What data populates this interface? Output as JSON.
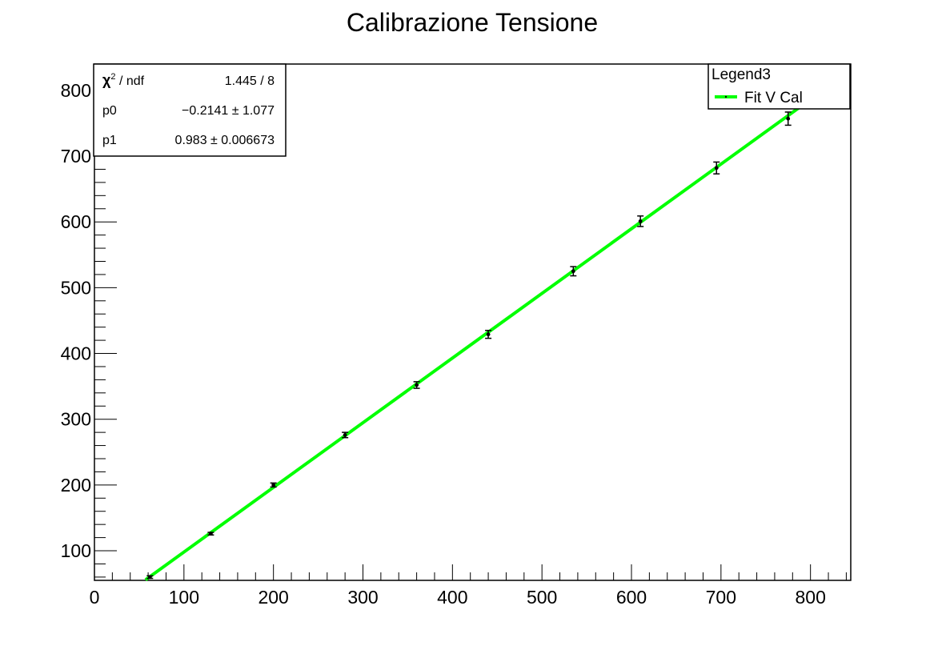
{
  "chart_data": {
    "type": "scatter",
    "title": "Calibrazione Tensione",
    "xlabel": "",
    "ylabel": "",
    "xlim": [
      0,
      845
    ],
    "ylim": [
      55,
      840
    ],
    "x_ticks": [
      0,
      100,
      200,
      300,
      400,
      500,
      600,
      700,
      800
    ],
    "y_ticks": [
      100,
      200,
      300,
      400,
      500,
      600,
      700,
      800
    ],
    "grid": false,
    "series": [
      {
        "name": "Fit V Cal",
        "color": "#00ff00",
        "points": [
          {
            "x": 62,
            "y": 60,
            "yerr": 2
          },
          {
            "x": 130,
            "y": 126,
            "yerr": 2
          },
          {
            "x": 200,
            "y": 200,
            "yerr": 3
          },
          {
            "x": 280,
            "y": 276,
            "yerr": 4
          },
          {
            "x": 360,
            "y": 352,
            "yerr": 5
          },
          {
            "x": 440,
            "y": 429,
            "yerr": 6
          },
          {
            "x": 535,
            "y": 525,
            "yerr": 7
          },
          {
            "x": 610,
            "y": 601,
            "yerr": 8
          },
          {
            "x": 695,
            "y": 682,
            "yerr": 9
          },
          {
            "x": 775,
            "y": 757,
            "yerr": 10
          }
        ],
        "fit": {
          "p0": -0.2141,
          "p1": 0.983,
          "x_range": [
            57,
            805
          ]
        }
      }
    ],
    "stats_box": {
      "chi2_label": "χ",
      "chi2_sup": "2",
      "ndf_label": " / ndf",
      "chi2_value": "1.445 / 8",
      "p0_label": "p0",
      "p0_value": "−0.2141 ± 1.077",
      "p1_label": "p1",
      "p1_value": "0.983 ± 0.006673"
    },
    "legend": {
      "title": "Legend3",
      "entry": "Fit V Cal",
      "placement": "top-right"
    }
  }
}
